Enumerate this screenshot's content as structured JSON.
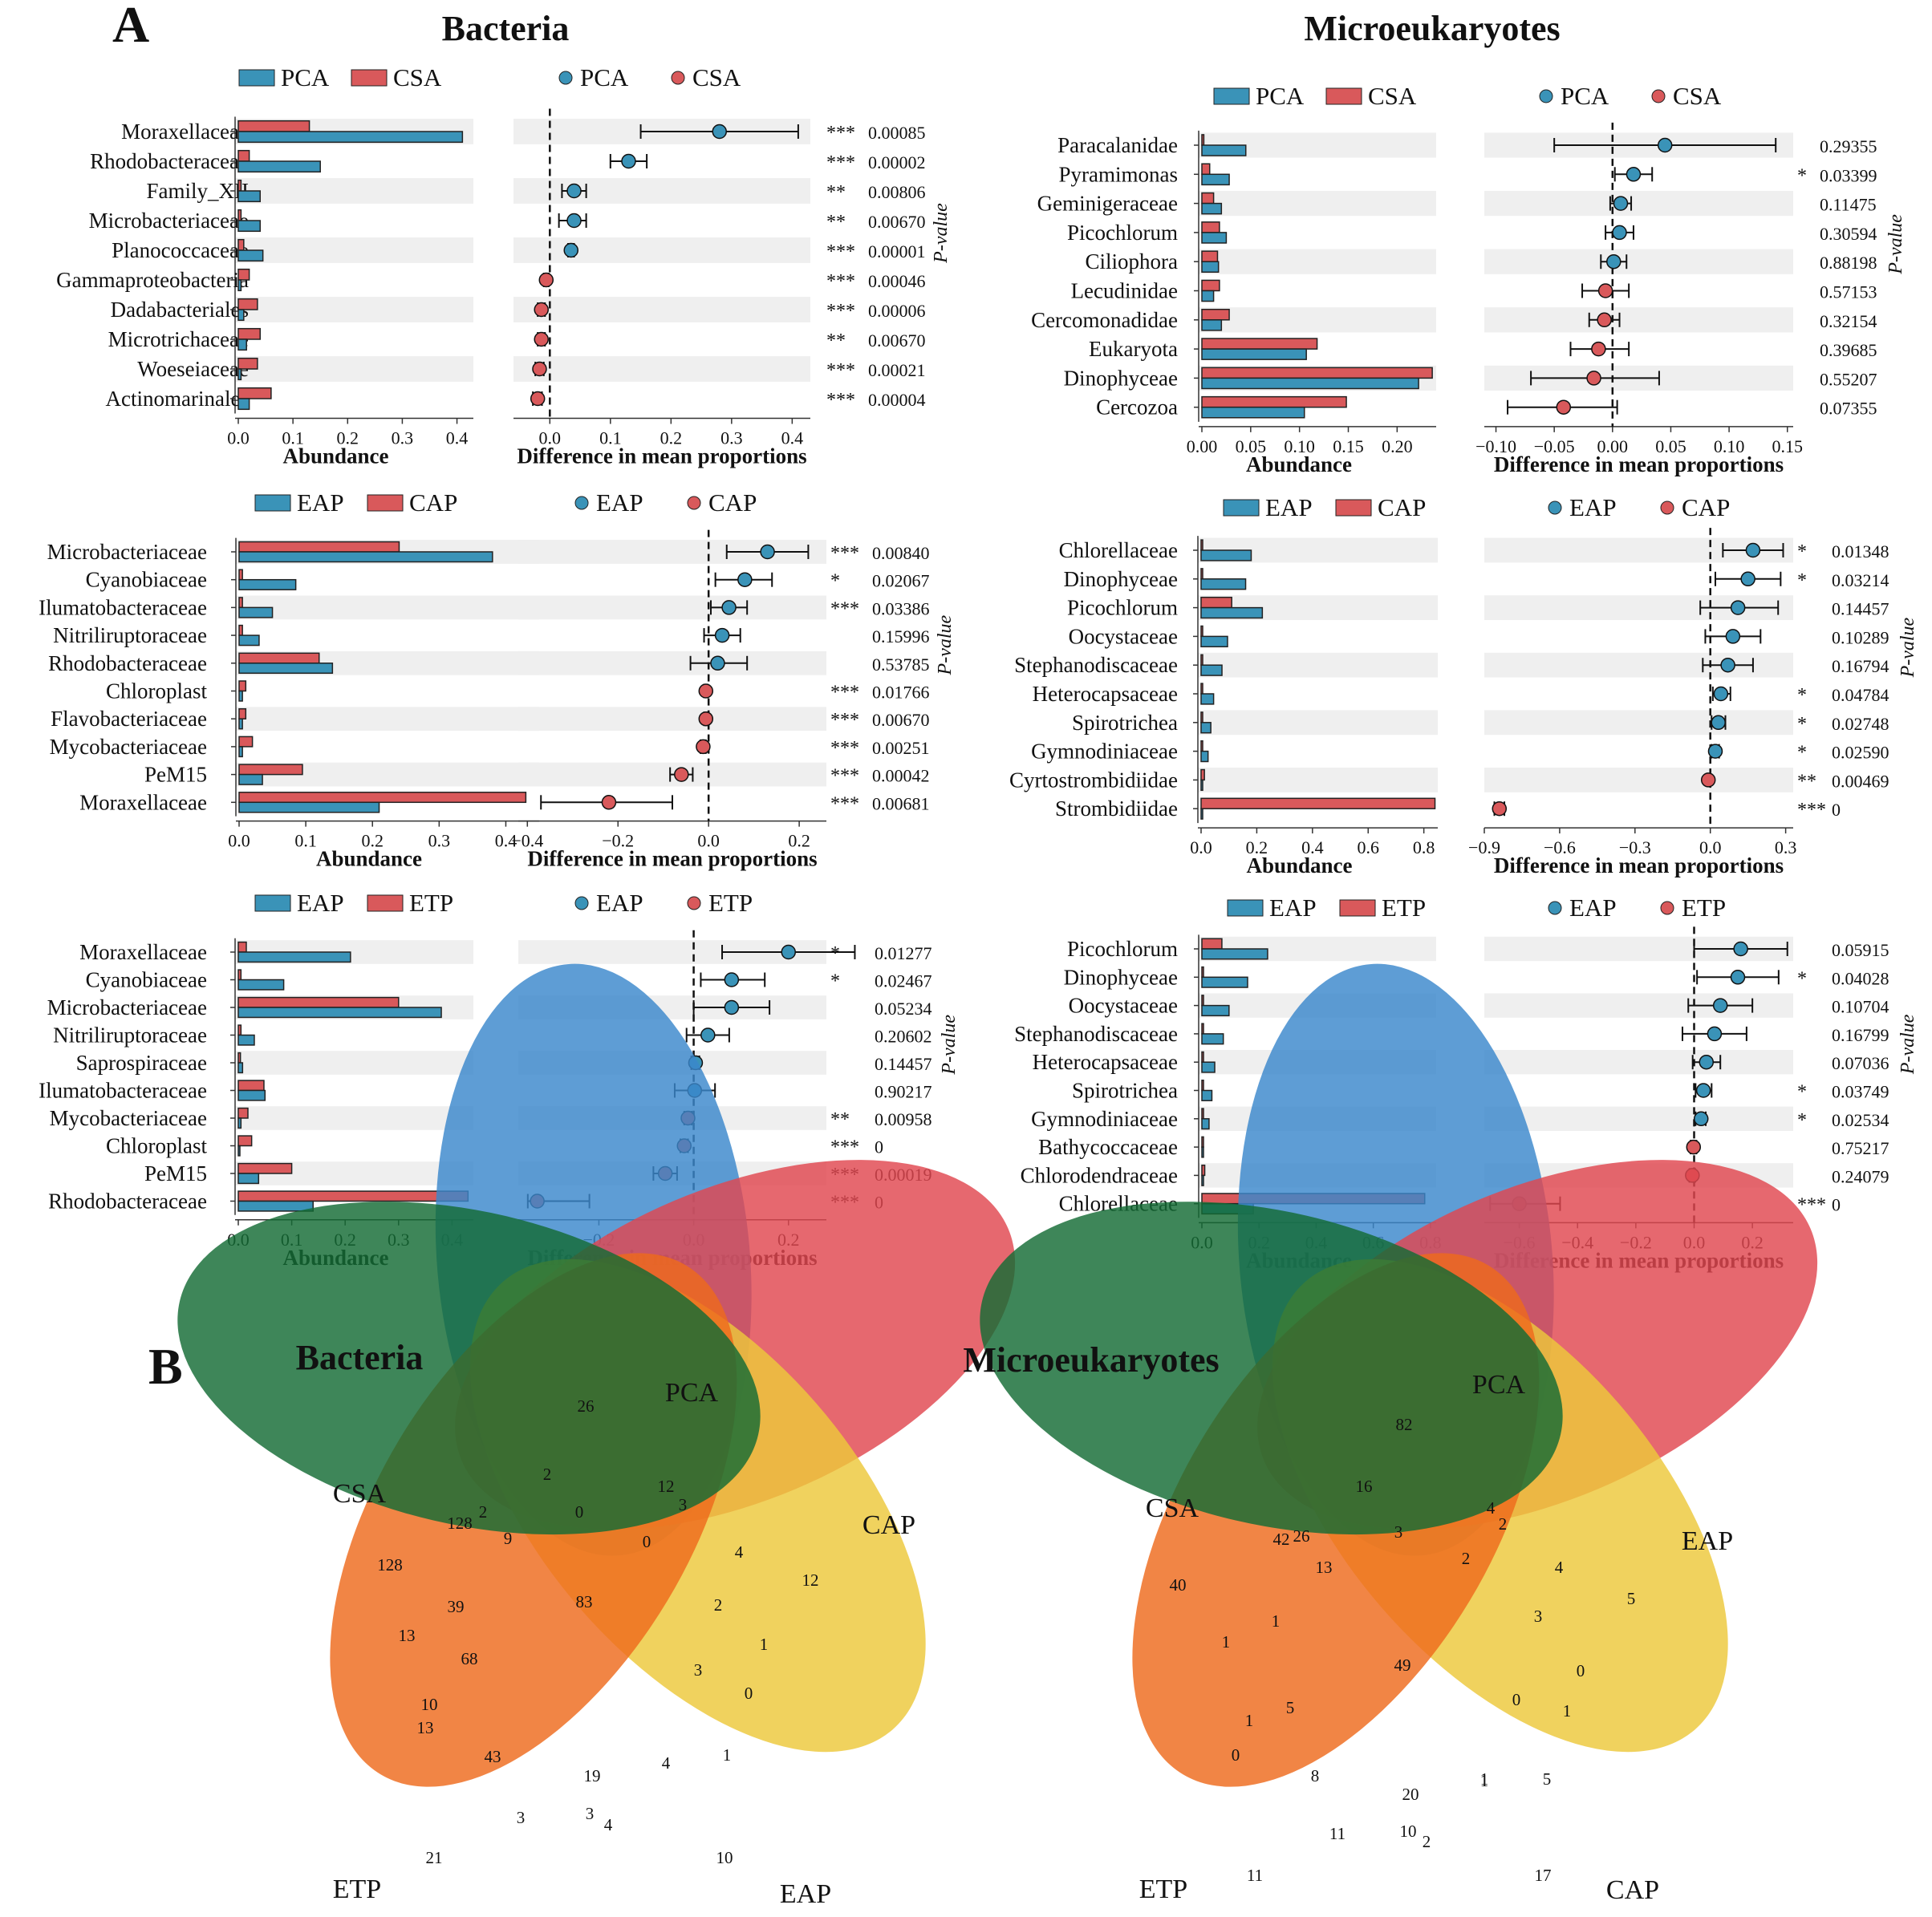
{
  "panels": [
    {
      "label": "A",
      "title": "Bacteria"
    },
    {
      "title": "Microeukaryotes"
    },
    {
      "label": "B",
      "title": "Bacteria"
    },
    {
      "title": "Microeukaryotes"
    }
  ],
  "colors": {
    "blue": "#3a93b8",
    "red": "#d9595b",
    "strip": "#efefef"
  },
  "chart_data": [
    {
      "type": "bar+errorbar",
      "group": "Bacteria",
      "comparison": [
        "PCA",
        "CSA"
      ],
      "xlabel": "Abundance",
      "dlabel": "Difference in mean proportions",
      "plabel": "P-value",
      "abund_ticks": [
        0.0,
        0.1,
        0.2,
        0.3,
        0.4
      ],
      "abund_ticklabels": [
        "0.0",
        "0.1",
        "0.2",
        "0.3",
        "0.4"
      ],
      "abund_max": 0.43,
      "diff_ticks": [
        0.0,
        0.1,
        0.2,
        0.3,
        0.4
      ],
      "diff_ticklabels": [
        "0.0",
        "0.1",
        "0.2",
        "0.3",
        "0.4"
      ],
      "diff_range": [
        -0.06,
        0.43
      ],
      "rows": [
        {
          "name": "Moraxellaceae",
          "a": 0.41,
          "b": 0.13,
          "d": 0.28,
          "lo": 0.15,
          "hi": 0.41,
          "sig": "***",
          "p": "0.00085"
        },
        {
          "name": "Rhodobacteraceae",
          "a": 0.15,
          "b": 0.02,
          "d": 0.13,
          "lo": 0.1,
          "hi": 0.16,
          "sig": "***",
          "p": "0.00002"
        },
        {
          "name": "Family_XII",
          "a": 0.04,
          "b": 0.005,
          "d": 0.04,
          "lo": 0.02,
          "hi": 0.06,
          "sig": "**",
          "p": "0.00806"
        },
        {
          "name": "Microbacteriaceae",
          "a": 0.04,
          "b": 0.005,
          "d": 0.04,
          "lo": 0.015,
          "hi": 0.06,
          "sig": "**",
          "p": "0.00670"
        },
        {
          "name": "Planococcaceae",
          "a": 0.045,
          "b": 0.01,
          "d": 0.035,
          "lo": 0.03,
          "hi": 0.04,
          "sig": "***",
          "p": "0.00001"
        },
        {
          "name": "Gammaproteobacteria",
          "a": 0.005,
          "b": 0.02,
          "d": -0.006,
          "lo": -0.01,
          "hi": -0.002,
          "sig": "***",
          "p": "0.00046"
        },
        {
          "name": "Dadabacteriales",
          "a": 0.01,
          "b": 0.035,
          "d": -0.014,
          "lo": -0.02,
          "hi": -0.008,
          "sig": "***",
          "p": "0.00006"
        },
        {
          "name": "Microtrichaceae",
          "a": 0.015,
          "b": 0.04,
          "d": -0.014,
          "lo": -0.02,
          "hi": -0.008,
          "sig": "**",
          "p": "0.00670"
        },
        {
          "name": "Woeseiaceae",
          "a": 0.005,
          "b": 0.035,
          "d": -0.017,
          "lo": -0.024,
          "hi": -0.01,
          "sig": "***",
          "p": "0.00021"
        },
        {
          "name": "Actinomarinales",
          "a": 0.02,
          "b": 0.06,
          "d": -0.02,
          "lo": -0.028,
          "hi": -0.013,
          "sig": "***",
          "p": "0.00004"
        }
      ]
    },
    {
      "type": "bar+errorbar",
      "group": "Bacteria",
      "comparison": [
        "EAP",
        "CAP"
      ],
      "xlabel": "Abundance",
      "dlabel": "Difference in mean proportions",
      "plabel": "P-value",
      "abund_ticks": [
        0.0,
        0.1,
        0.2,
        0.3,
        0.4
      ],
      "abund_ticklabels": [
        "0.0",
        "0.1",
        "0.2",
        "0.3",
        "0.4"
      ],
      "abund_max": 0.45,
      "diff_ticks": [
        -0.4,
        -0.2,
        0.0,
        0.2
      ],
      "diff_ticklabels": [
        "−0.4",
        "−0.2",
        "0.0",
        "0.2"
      ],
      "diff_range": [
        -0.42,
        0.26
      ],
      "rows": [
        {
          "name": "Microbacteriaceae",
          "a": 0.38,
          "b": 0.24,
          "d": 0.13,
          "lo": 0.04,
          "hi": 0.22,
          "sig": "***",
          "p": "0.00840"
        },
        {
          "name": "Cyanobiaceae",
          "a": 0.085,
          "b": 0.005,
          "d": 0.08,
          "lo": 0.015,
          "hi": 0.14,
          "sig": "*",
          "p": "0.02067"
        },
        {
          "name": "Ilumatobacteraceae",
          "a": 0.05,
          "b": 0.005,
          "d": 0.045,
          "lo": 0.005,
          "hi": 0.085,
          "sig": "***",
          "p": "0.03386"
        },
        {
          "name": "Nitriliruptoraceae",
          "a": 0.03,
          "b": 0.005,
          "d": 0.03,
          "lo": -0.01,
          "hi": 0.07,
          "sig": "",
          "p": "0.15996"
        },
        {
          "name": "Rhodobacteraceae",
          "a": 0.14,
          "b": 0.12,
          "d": 0.02,
          "lo": -0.04,
          "hi": 0.085,
          "sig": "",
          "p": "0.53785"
        },
        {
          "name": "Chloroplast",
          "a": 0.005,
          "b": 0.01,
          "d": -0.006,
          "lo": -0.01,
          "hi": -0.002,
          "sig": "***",
          "p": "0.01766"
        },
        {
          "name": "Flavobacteriaceae",
          "a": 0.005,
          "b": 0.01,
          "d": -0.006,
          "lo": -0.01,
          "hi": -0.002,
          "sig": "***",
          "p": "0.00670"
        },
        {
          "name": "Mycobacteriaceae",
          "a": 0.005,
          "b": 0.02,
          "d": -0.012,
          "lo": -0.018,
          "hi": -0.006,
          "sig": "***",
          "p": "0.00251"
        },
        {
          "name": "PeM15",
          "a": 0.035,
          "b": 0.095,
          "d": -0.06,
          "lo": -0.085,
          "hi": -0.035,
          "sig": "***",
          "p": "0.00042"
        },
        {
          "name": "Moraxellaceae",
          "a": 0.21,
          "b": 0.43,
          "d": -0.22,
          "lo": -0.37,
          "hi": -0.08,
          "sig": "***",
          "p": "0.00681"
        }
      ]
    },
    {
      "type": "bar+errorbar",
      "group": "Bacteria",
      "comparison": [
        "EAP",
        "ETP"
      ],
      "xlabel": "Abundance",
      "dlabel": "Difference in mean proportions",
      "plabel": "P-value",
      "abund_ticks": [
        0.0,
        0.1,
        0.2,
        0.3,
        0.4
      ],
      "abund_ticklabels": [
        "0.0",
        "0.1",
        "0.2",
        "0.3",
        "0.4"
      ],
      "abund_max": 0.44,
      "diff_ticks": [
        -0.2,
        0.0,
        0.2
      ],
      "diff_ticklabels": [
        "−0.2",
        "0.0",
        "0.2"
      ],
      "diff_range": [
        -0.37,
        0.28
      ],
      "rows": [
        {
          "name": "Moraxellaceae",
          "a": 0.21,
          "b": 0.015,
          "d": 0.2,
          "lo": 0.06,
          "hi": 0.34,
          "sig": "*",
          "p": "0.01277"
        },
        {
          "name": "Cyanobiaceae",
          "a": 0.085,
          "b": 0.005,
          "d": 0.08,
          "lo": 0.015,
          "hi": 0.15,
          "sig": "*",
          "p": "0.02467"
        },
        {
          "name": "Microbacteriaceae",
          "a": 0.38,
          "b": 0.3,
          "d": 0.08,
          "lo": 0.0,
          "hi": 0.16,
          "sig": "",
          "p": "0.05234"
        },
        {
          "name": "Nitriliruptoraceae",
          "a": 0.03,
          "b": 0.005,
          "d": 0.03,
          "lo": -0.015,
          "hi": 0.075,
          "sig": "",
          "p": "0.20602"
        },
        {
          "name": "Saprospiraceae",
          "a": 0.008,
          "b": 0.004,
          "d": 0.004,
          "lo": -0.005,
          "hi": 0.012,
          "sig": "",
          "p": "0.14457"
        },
        {
          "name": "Ilumatobacteraceae",
          "a": 0.05,
          "b": 0.048,
          "d": 0.002,
          "lo": -0.04,
          "hi": 0.045,
          "sig": "",
          "p": "0.90217"
        },
        {
          "name": "Mycobacteriaceae",
          "a": 0.005,
          "b": 0.018,
          "d": -0.012,
          "lo": -0.02,
          "hi": -0.004,
          "sig": "**",
          "p": "0.00958"
        },
        {
          "name": "Chloroplast",
          "a": 0.002,
          "b": 0.025,
          "d": -0.02,
          "lo": -0.028,
          "hi": -0.012,
          "sig": "***",
          "p": "0"
        },
        {
          "name": "PeM15",
          "a": 0.038,
          "b": 0.1,
          "d": -0.06,
          "lo": -0.085,
          "hi": -0.035,
          "sig": "***",
          "p": "0.00019"
        },
        {
          "name": "Rhodobacteraceae",
          "a": 0.14,
          "b": 0.43,
          "d": -0.33,
          "lo": -0.35,
          "hi": -0.22,
          "sig": "***",
          "p": "0"
        }
      ]
    },
    {
      "type": "bar+errorbar",
      "group": "Microeukaryotes",
      "comparison": [
        "PCA",
        "CSA"
      ],
      "xlabel": "Abundance",
      "dlabel": "Difference in mean proportions",
      "plabel": "P-value",
      "abund_ticks": [
        0.0,
        0.05,
        0.1,
        0.15,
        0.2
      ],
      "abund_ticklabels": [
        "0.00",
        "0.05",
        "0.10",
        "0.15",
        "0.20"
      ],
      "abund_max": 0.24,
      "diff_ticks": [
        -0.1,
        -0.05,
        0.0,
        0.05,
        0.1,
        0.15
      ],
      "diff_ticklabels": [
        "−0.10",
        "−0.05",
        "0.00",
        "0.05",
        "0.10",
        "0.15"
      ],
      "diff_range": [
        -0.11,
        0.155
      ],
      "rows": [
        {
          "name": "Paracalanidae",
          "a": 0.045,
          "b": 0.002,
          "d": 0.045,
          "lo": -0.05,
          "hi": 0.14,
          "sig": "",
          "p": "0.29355"
        },
        {
          "name": "Pyramimonas",
          "a": 0.028,
          "b": 0.008,
          "d": 0.018,
          "lo": 0.002,
          "hi": 0.034,
          "sig": "*",
          "p": "0.03399"
        },
        {
          "name": "Geminigeraceae",
          "a": 0.02,
          "b": 0.012,
          "d": 0.007,
          "lo": -0.002,
          "hi": 0.016,
          "sig": "",
          "p": "0.11475"
        },
        {
          "name": "Picochlorum",
          "a": 0.025,
          "b": 0.018,
          "d": 0.006,
          "lo": -0.006,
          "hi": 0.018,
          "sig": "",
          "p": "0.30594"
        },
        {
          "name": "Ciliophora",
          "a": 0.017,
          "b": 0.016,
          "d": 0.001,
          "lo": -0.01,
          "hi": 0.012,
          "sig": "",
          "p": "0.88198"
        },
        {
          "name": "Lecudinidae",
          "a": 0.012,
          "b": 0.018,
          "d": -0.006,
          "lo": -0.026,
          "hi": 0.014,
          "sig": "",
          "p": "0.57153"
        },
        {
          "name": "Cercomonadidae",
          "a": 0.02,
          "b": 0.028,
          "d": -0.007,
          "lo": -0.02,
          "hi": 0.006,
          "sig": "",
          "p": "0.32154"
        },
        {
          "name": "Eukaryota",
          "a": 0.107,
          "b": 0.118,
          "d": -0.012,
          "lo": -0.036,
          "hi": 0.014,
          "sig": "",
          "p": "0.39685"
        },
        {
          "name": "Dinophyceae",
          "a": 0.222,
          "b": 0.236,
          "d": -0.016,
          "lo": -0.07,
          "hi": 0.04,
          "sig": "",
          "p": "0.55207"
        },
        {
          "name": "Cercozoa",
          "a": 0.105,
          "b": 0.148,
          "d": -0.042,
          "lo": -0.09,
          "hi": 0.004,
          "sig": "",
          "p": "0.07355"
        }
      ]
    },
    {
      "type": "bar+errorbar",
      "group": "Microeukaryotes",
      "comparison": [
        "EAP",
        "CAP"
      ],
      "xlabel": "Abundance",
      "dlabel": "Difference in mean proportions",
      "plabel": "P-value",
      "abund_ticks": [
        0.0,
        0.2,
        0.4,
        0.6,
        0.8
      ],
      "abund_ticklabels": [
        "0.0",
        "0.2",
        "0.4",
        "0.6",
        "0.8"
      ],
      "abund_max": 0.85,
      "diff_ticks": [
        -0.9,
        -0.6,
        -0.3,
        0.0,
        0.3
      ],
      "diff_ticklabels": [
        "−0.9",
        "−0.6",
        "−0.3",
        "0.0",
        "0.3"
      ],
      "diff_range": [
        -0.9,
        0.33
      ],
      "rows": [
        {
          "name": "Chlorellaceae",
          "a": 0.18,
          "b": 0.005,
          "d": 0.17,
          "lo": 0.05,
          "hi": 0.29,
          "sig": "*",
          "p": "0.01348"
        },
        {
          "name": "Dinophyceae",
          "a": 0.16,
          "b": 0.005,
          "d": 0.15,
          "lo": 0.02,
          "hi": 0.28,
          "sig": "*",
          "p": "0.03214"
        },
        {
          "name": "Picochlorum",
          "a": 0.22,
          "b": 0.11,
          "d": 0.11,
          "lo": -0.04,
          "hi": 0.27,
          "sig": "",
          "p": "0.14457"
        },
        {
          "name": "Oocystaceae",
          "a": 0.095,
          "b": 0.005,
          "d": 0.09,
          "lo": -0.02,
          "hi": 0.2,
          "sig": "",
          "p": "0.10289"
        },
        {
          "name": "Stephanodiscaceae",
          "a": 0.075,
          "b": 0.005,
          "d": 0.07,
          "lo": -0.03,
          "hi": 0.17,
          "sig": "",
          "p": "0.16794"
        },
        {
          "name": "Heterocapsaceae",
          "a": 0.045,
          "b": 0.003,
          "d": 0.042,
          "lo": 0.01,
          "hi": 0.08,
          "sig": "*",
          "p": "0.04784"
        },
        {
          "name": "Spirotrichea",
          "a": 0.035,
          "b": 0.003,
          "d": 0.032,
          "lo": 0.005,
          "hi": 0.06,
          "sig": "*",
          "p": "0.02748"
        },
        {
          "name": "Gymnodiniaceae",
          "a": 0.025,
          "b": 0.002,
          "d": 0.02,
          "lo": 0.005,
          "hi": 0.035,
          "sig": "*",
          "p": "0.02590"
        },
        {
          "name": "Cyrtostrombidiidae",
          "a": 0.005,
          "b": 0.012,
          "d": -0.008,
          "lo": -0.012,
          "hi": -0.004,
          "sig": "**",
          "p": "0.00469"
        },
        {
          "name": "Strombidiidae",
          "a": 0.0,
          "b": 0.84,
          "d": -0.84,
          "lo": -0.86,
          "hi": -0.82,
          "sig": "***",
          "p": "0"
        }
      ]
    },
    {
      "type": "bar+errorbar",
      "group": "Microeukaryotes",
      "comparison": [
        "EAP",
        "ETP"
      ],
      "xlabel": "Abundance",
      "dlabel": "Difference in mean proportions",
      "plabel": "P-value",
      "abund_ticks": [
        0.0,
        0.2,
        0.4,
        0.6,
        0.8
      ],
      "abund_ticklabels": [
        "0.0",
        "0.2",
        "0.4",
        "0.6",
        "0.8"
      ],
      "abund_max": 0.82,
      "diff_ticks": [
        -0.6,
        -0.4,
        -0.2,
        0.0,
        0.2
      ],
      "diff_ticklabels": [
        "−0.6",
        "−0.4",
        "−0.2",
        "0.0",
        "0.2"
      ],
      "diff_range": [
        -0.72,
        0.34
      ],
      "rows": [
        {
          "name": "Picochlorum",
          "a": 0.23,
          "b": 0.07,
          "d": 0.16,
          "lo": 0.0,
          "hi": 0.32,
          "sig": "",
          "p": "0.05915"
        },
        {
          "name": "Dinophyceae",
          "a": 0.16,
          "b": 0.005,
          "d": 0.15,
          "lo": 0.01,
          "hi": 0.29,
          "sig": "*",
          "p": "0.04028"
        },
        {
          "name": "Oocystaceae",
          "a": 0.095,
          "b": 0.005,
          "d": 0.09,
          "lo": -0.02,
          "hi": 0.2,
          "sig": "",
          "p": "0.10704"
        },
        {
          "name": "Stephanodiscaceae",
          "a": 0.075,
          "b": 0.005,
          "d": 0.07,
          "lo": -0.04,
          "hi": 0.18,
          "sig": "",
          "p": "0.16799"
        },
        {
          "name": "Heterocapsaceae",
          "a": 0.045,
          "b": 0.003,
          "d": 0.042,
          "lo": -0.005,
          "hi": 0.09,
          "sig": "",
          "p": "0.07036"
        },
        {
          "name": "Spirotrichea",
          "a": 0.035,
          "b": 0.003,
          "d": 0.032,
          "lo": 0.005,
          "hi": 0.06,
          "sig": "*",
          "p": "0.03749"
        },
        {
          "name": "Gymnodiniaceae",
          "a": 0.025,
          "b": 0.002,
          "d": 0.024,
          "lo": 0.005,
          "hi": 0.04,
          "sig": "*",
          "p": "0.02534"
        },
        {
          "name": "Bathycoccaceae",
          "a": 0.003,
          "b": 0.005,
          "d": -0.002,
          "lo": -0.012,
          "hi": 0.008,
          "sig": "",
          "p": "0.75217"
        },
        {
          "name": "Chlorodendraceae",
          "a": 0.004,
          "b": 0.01,
          "d": -0.006,
          "lo": -0.016,
          "hi": 0.004,
          "sig": "",
          "p": "0.24079"
        },
        {
          "name": "Chlorellaceae",
          "a": 0.18,
          "b": 0.78,
          "d": -0.6,
          "lo": -0.7,
          "hi": -0.46,
          "sig": "***",
          "p": "0"
        }
      ]
    },
    {
      "type": "venn",
      "group": "Bacteria",
      "sets": [
        {
          "name": "PCA",
          "color": "#3a87cc"
        },
        {
          "name": "CAP",
          "color": "#e0474f"
        },
        {
          "name": "EAP",
          "color": "#edc83a"
        },
        {
          "name": "ETP",
          "color": "#ee6a1c"
        },
        {
          "name": "CSA",
          "color": "#136b34"
        }
      ],
      "numbers": [
        "26",
        "2",
        "0",
        "12",
        "9",
        "2",
        "3",
        "0",
        "4",
        "128",
        "128",
        "39",
        "83",
        "2",
        "12",
        "13",
        "68",
        "3",
        "1",
        "10",
        "0",
        "13",
        "43",
        "19",
        "4",
        "1",
        "3",
        "3",
        "4",
        "21",
        "10"
      ]
    },
    {
      "type": "venn",
      "group": "Microeukaryotes",
      "sets": [
        {
          "name": "PCA",
          "color": "#3a87cc"
        },
        {
          "name": "EAP",
          "color": "#e0474f"
        },
        {
          "name": "CAP",
          "color": "#edc83a"
        },
        {
          "name": "ETP",
          "color": "#ee6a1c"
        },
        {
          "name": "CSA",
          "color": "#136b34"
        }
      ],
      "numbers": [
        "82",
        "16",
        "4",
        "2",
        "3",
        "26",
        "42",
        "13",
        "2",
        "4",
        "40",
        "1",
        "1",
        "3",
        "5",
        "49",
        "0",
        "0",
        "1",
        "5",
        "1",
        "0",
        "5",
        "1",
        "8",
        "20",
        "1",
        "11",
        "10",
        "2",
        "11",
        "17"
      ]
    }
  ]
}
